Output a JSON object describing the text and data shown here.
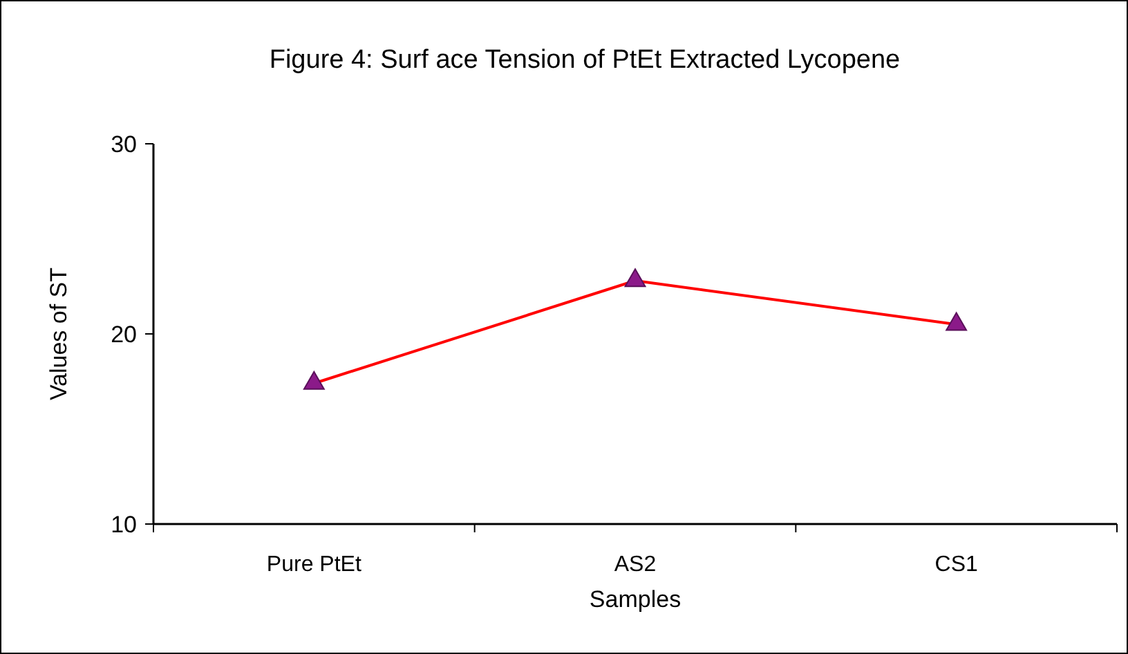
{
  "chart_data": {
    "type": "line",
    "title": "Figure 4: Surf ace Tension of PtEt Extracted Lycopene",
    "xlabel": "Samples",
    "ylabel": "Values of ST",
    "categories": [
      "Pure PtEt",
      "AS2",
      "CS1"
    ],
    "series": [
      {
        "color": "#ff0000",
        "values": [
          17.4,
          22.8,
          20.5
        ]
      }
    ],
    "ylim": [
      10,
      30
    ],
    "yticks": [
      10,
      20,
      30
    ],
    "grid": false,
    "marker": "triangle",
    "line_style": "solid"
  }
}
